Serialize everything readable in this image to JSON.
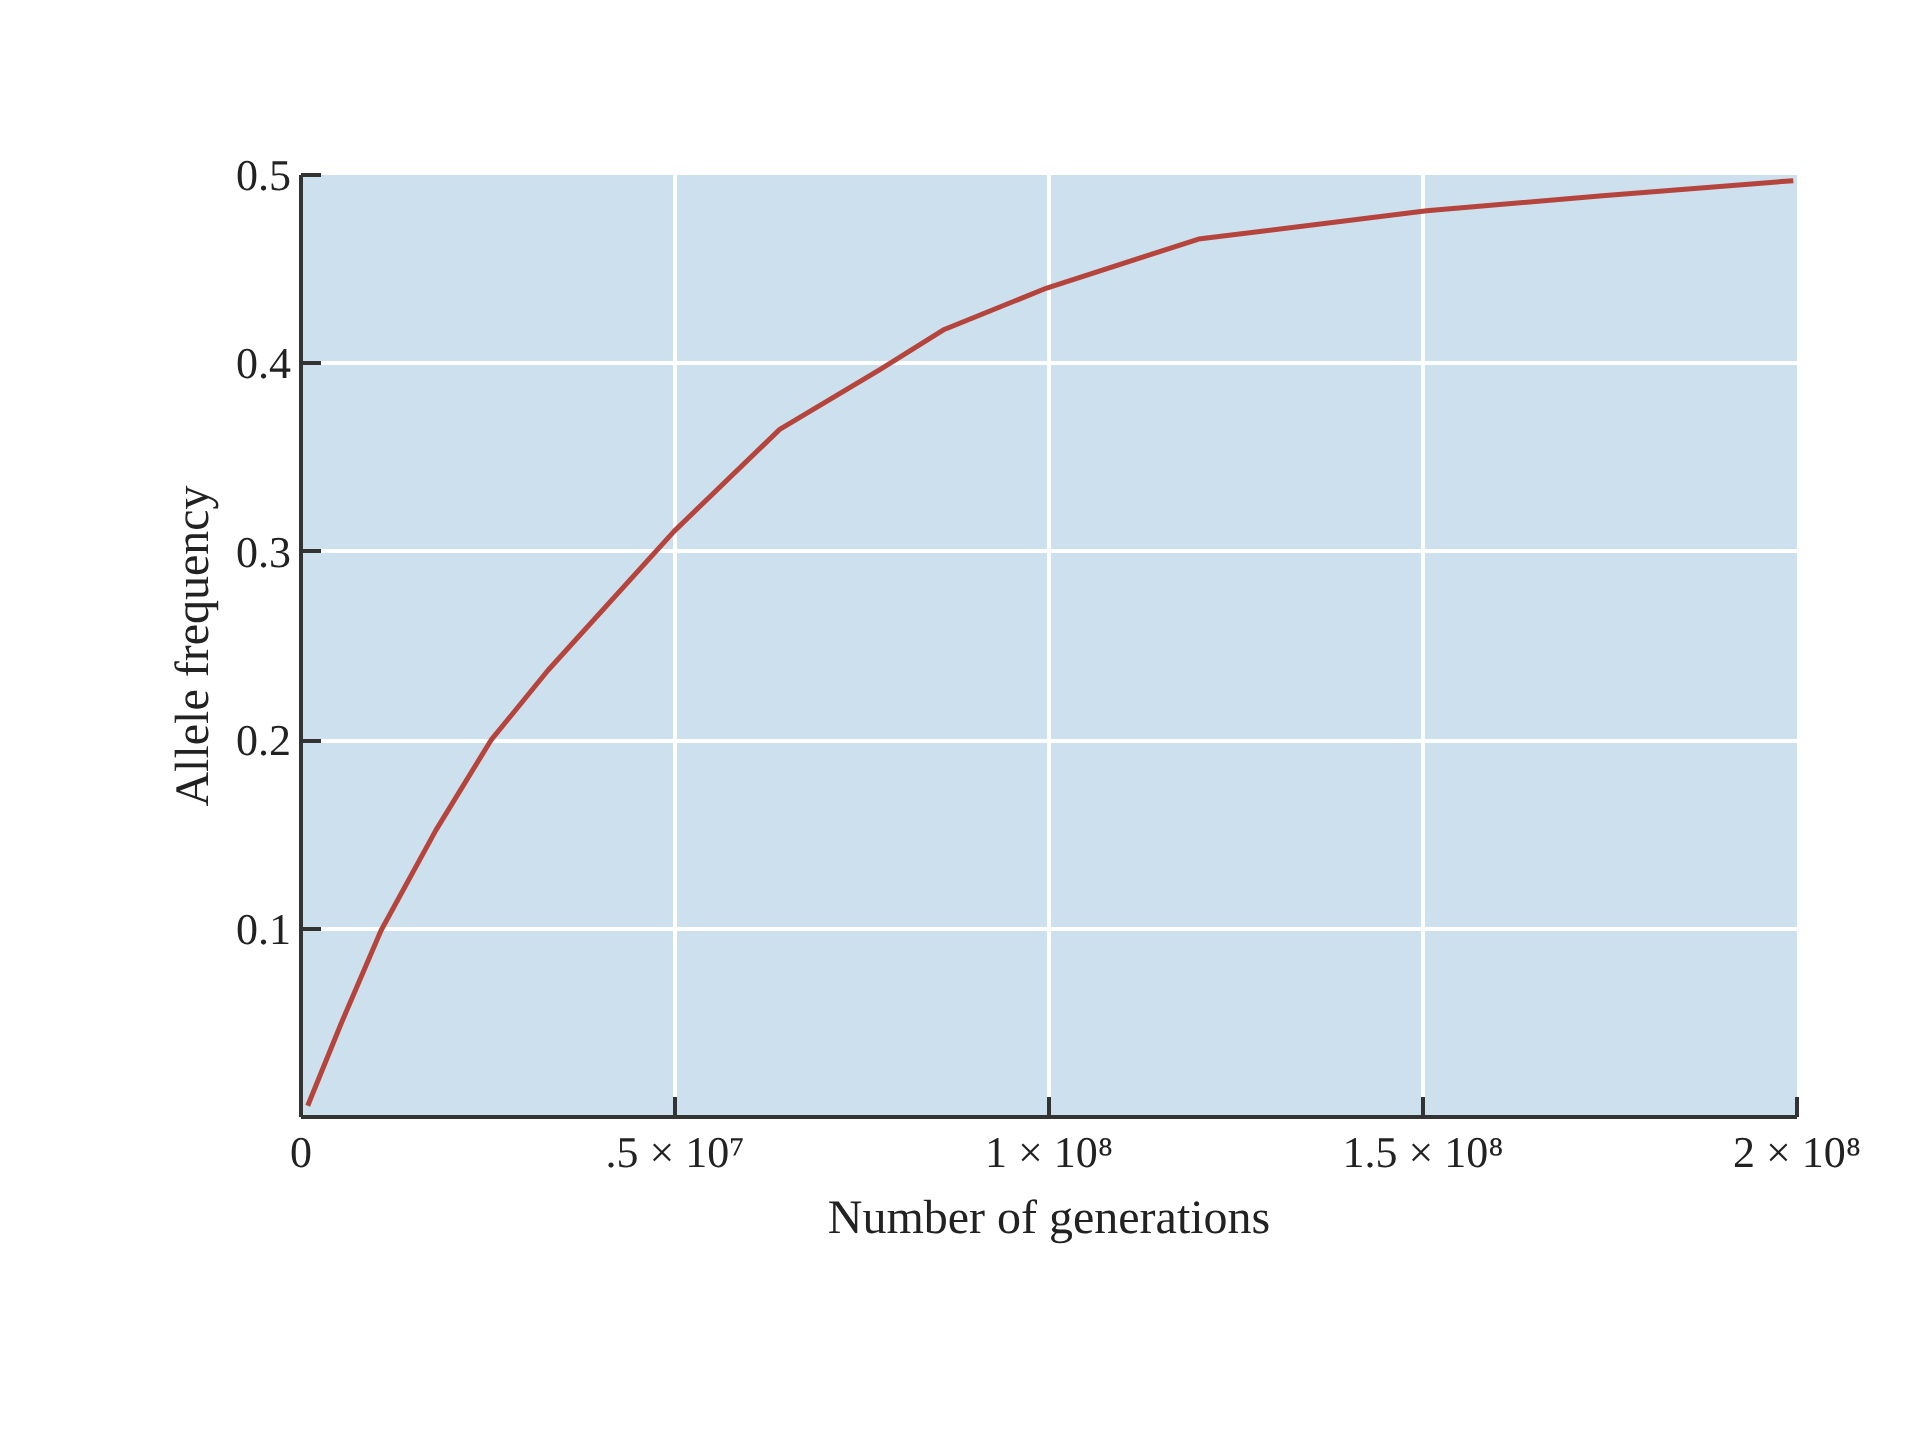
{
  "chart_data": {
    "type": "line",
    "xlabel": "Number of generations",
    "ylabel": "Allele frequency",
    "x": [
      900000,
      5300000,
      10700000,
      18000000,
      25400000,
      33000000,
      49900000,
      64000000,
      77500000,
      86000000,
      99700000,
      120000000,
      150500000,
      174000000,
      199500000
    ],
    "series": [
      {
        "color": "#b5443c",
        "values": [
          0.006,
          0.049,
          0.099,
          0.152,
          0.2,
          0.237,
          0.311,
          0.365,
          0.397,
          0.418,
          0.44,
          0.466,
          0.481,
          0.489,
          0.497
        ]
      }
    ],
    "xlim": [
      0,
      200000000
    ],
    "ylim": [
      0,
      0.5
    ],
    "xticks": [
      0,
      {
        "value": 50000000,
        "label": ".5 × 10⁷"
      },
      {
        "value": 100000000,
        "label": "1 × 10⁸"
      },
      {
        "value": 150000000,
        "label": "1.5 × 10⁸"
      },
      {
        "value": 200000000,
        "label": "2 × 10⁸"
      }
    ],
    "yticks": [
      0.1,
      0.2,
      0.3,
      0.4,
      0.5
    ],
    "grid": true,
    "marker": "none",
    "line_style": "solid"
  }
}
